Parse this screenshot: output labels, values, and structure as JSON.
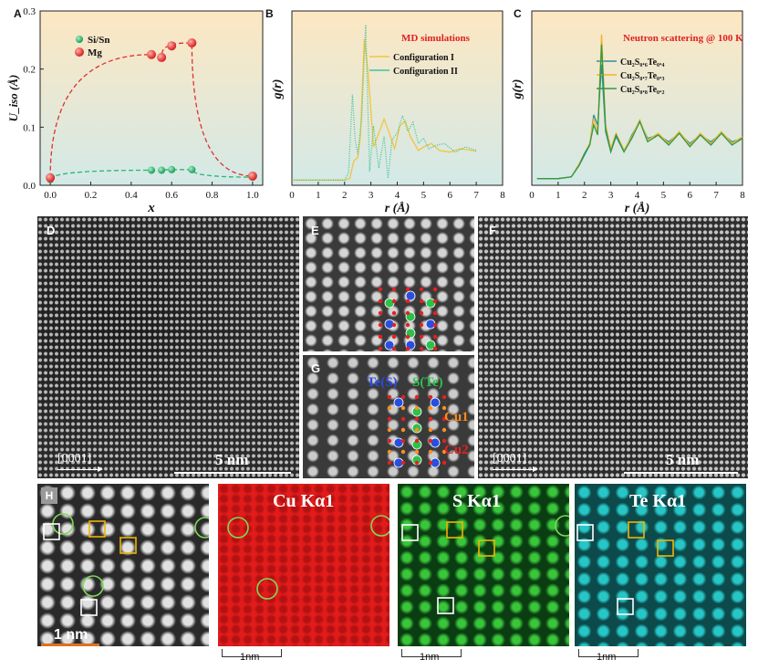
{
  "panel_letters": {
    "a": "A",
    "b": "B",
    "c": "C",
    "d": "D",
    "e": "E",
    "f": "F",
    "g": "G",
    "h": "H"
  },
  "colors": {
    "mg": "#e03030",
    "sisn": "#2bb673",
    "config1": "#f2c440",
    "config2": "#3ec4a0",
    "c_s06": "#2a8fa8",
    "c_s07": "#f0b428",
    "c_s08": "#2e9a48",
    "cu_map": "#e02020",
    "s_map": "#22aa22",
    "te_map": "#22c7c9",
    "red_title": "#e02020"
  },
  "chart_data": [
    {
      "id": "A",
      "type": "scatter",
      "xlabel": "x",
      "ylabel": "U_iso (Å)",
      "xlim": [
        -0.05,
        1.05
      ],
      "ylim": [
        0,
        0.3
      ],
      "xticks": [
        "0.0",
        "0.2",
        "0.4",
        "0.6",
        "0.8",
        "1.0"
      ],
      "yticks": [
        "0.0",
        "0.1",
        "0.2",
        "0.3"
      ],
      "legend": "top-left",
      "series": [
        {
          "name": "Si/Sn",
          "x": [
            0.0,
            0.5,
            0.55,
            0.6,
            0.7,
            1.0
          ],
          "y": [
            0.01,
            0.026,
            0.026,
            0.027,
            0.027,
            0.014
          ]
        },
        {
          "name": "Mg",
          "x": [
            0.0,
            0.5,
            0.55,
            0.6,
            0.7,
            1.0
          ],
          "y": [
            0.013,
            0.225,
            0.22,
            0.24,
            0.245,
            0.016
          ]
        }
      ]
    },
    {
      "id": "B",
      "type": "line",
      "title": "MD simulations",
      "xlabel": "r (Å)",
      "ylabel": "g(r)",
      "xlim": [
        0,
        8
      ],
      "xticks": [
        "0",
        "1",
        "2",
        "3",
        "4",
        "5",
        "6",
        "7",
        "8"
      ],
      "legend": "top-right",
      "series": [
        {
          "name": "Configuration I",
          "x": [
            0,
            1,
            2,
            2.2,
            2.35,
            2.5,
            2.6,
            2.75,
            2.9,
            3.1,
            3.3,
            3.5,
            3.7,
            3.9,
            4.1,
            4.3,
            4.5,
            4.8,
            5.0,
            5.3,
            5.6,
            6.0,
            6.4,
            7.0
          ],
          "y": [
            0.15,
            0.15,
            0.15,
            0.2,
            0.7,
            0.8,
            1.4,
            4.2,
            3.2,
            1.1,
            1.5,
            1.9,
            1.5,
            1.05,
            1.7,
            1.85,
            1.4,
            1.0,
            1.1,
            1.2,
            1.0,
            0.95,
            1.05,
            0.98
          ]
        },
        {
          "name": "Configuration II",
          "x": [
            0,
            1,
            2,
            2.15,
            2.3,
            2.4,
            2.5,
            2.65,
            2.8,
            2.95,
            3.1,
            3.3,
            3.5,
            3.65,
            3.8,
            4.0,
            4.2,
            4.4,
            4.6,
            4.8,
            5.0,
            5.2,
            5.5,
            5.8,
            6.2,
            6.6,
            7.0
          ],
          "y": [
            0.15,
            0.15,
            0.15,
            0.35,
            2.6,
            1.3,
            0.9,
            1.9,
            4.6,
            0.4,
            1.7,
            0.5,
            1.4,
            0.2,
            1.3,
            1.5,
            2.0,
            1.55,
            1.8,
            1.2,
            1.35,
            1.05,
            1.15,
            1.2,
            0.95,
            1.1,
            1.0
          ]
        }
      ]
    },
    {
      "id": "C",
      "type": "line",
      "title": "Neutron scattering @ 100 K",
      "xlabel": "r (Å)",
      "ylabel": "g(r)",
      "xlim": [
        0,
        8
      ],
      "xticks": [
        "0",
        "1",
        "2",
        "3",
        "4",
        "5",
        "6",
        "7",
        "8"
      ],
      "legend": "top-right",
      "series": [
        {
          "name": "Cu₂S₀.₆Te₀.₄",
          "x": [
            0.2,
            1,
            1.5,
            1.8,
            2.0,
            2.2,
            2.35,
            2.5,
            2.65,
            2.8,
            3.0,
            3.2,
            3.5,
            3.8,
            4.1,
            4.4,
            4.8,
            5.2,
            5.6,
            6.0,
            6.4,
            6.8,
            7.2,
            7.6,
            8.0
          ],
          "y": [
            0.2,
            0.2,
            0.25,
            0.6,
            0.9,
            1.2,
            2.1,
            1.8,
            3.6,
            1.6,
            1.0,
            1.45,
            1.0,
            1.5,
            1.9,
            1.4,
            1.5,
            1.3,
            1.55,
            1.25,
            1.5,
            1.3,
            1.55,
            1.3,
            1.4
          ]
        },
        {
          "name": "Cu₂S₀.₇Te₀.₃",
          "x": [
            0.2,
            1,
            1.5,
            1.8,
            2.0,
            2.2,
            2.35,
            2.5,
            2.65,
            2.8,
            3.0,
            3.2,
            3.5,
            3.8,
            4.1,
            4.4,
            4.8,
            5.2,
            5.6,
            6.0,
            6.4,
            6.8,
            7.2,
            7.6,
            8.0
          ],
          "y": [
            0.2,
            0.2,
            0.25,
            0.65,
            0.95,
            1.25,
            2.0,
            1.6,
            4.5,
            1.8,
            1.1,
            1.55,
            1.05,
            1.45,
            1.95,
            1.35,
            1.55,
            1.25,
            1.6,
            1.2,
            1.55,
            1.25,
            1.6,
            1.25,
            1.45
          ]
        },
        {
          "name": "Cu₂S₀.₈Te₀.₂",
          "x": [
            0.2,
            1,
            1.5,
            1.8,
            2.0,
            2.2,
            2.35,
            2.5,
            2.65,
            2.8,
            3.0,
            3.2,
            3.5,
            3.8,
            4.1,
            4.4,
            4.8,
            5.2,
            5.6,
            6.0,
            6.4,
            6.8,
            7.2,
            7.6,
            8.0
          ],
          "y": [
            0.2,
            0.2,
            0.25,
            0.6,
            0.95,
            1.2,
            1.8,
            1.5,
            4.2,
            1.7,
            1.0,
            1.5,
            1.0,
            1.4,
            1.9,
            1.3,
            1.5,
            1.2,
            1.55,
            1.15,
            1.5,
            1.2,
            1.55,
            1.2,
            1.4
          ]
        }
      ]
    }
  ],
  "micrographs": {
    "d": {
      "direction": "[0001]",
      "scale": "5 nm"
    },
    "f": {
      "direction": "[0001]",
      "scale": "5 nm"
    },
    "g": {
      "te_s": "Te(S)",
      "s_te": "S(Te)",
      "cu1": "Cu1",
      "cu2": "Cu2"
    },
    "h": {
      "scale": "1 nm"
    }
  },
  "maps": {
    "cu": {
      "title": "Cu Kα1",
      "scale": "1nm"
    },
    "s": {
      "title": "S Kα1",
      "scale": "1nm"
    },
    "te": {
      "title": "Te Kα1",
      "scale": "1nm"
    }
  }
}
